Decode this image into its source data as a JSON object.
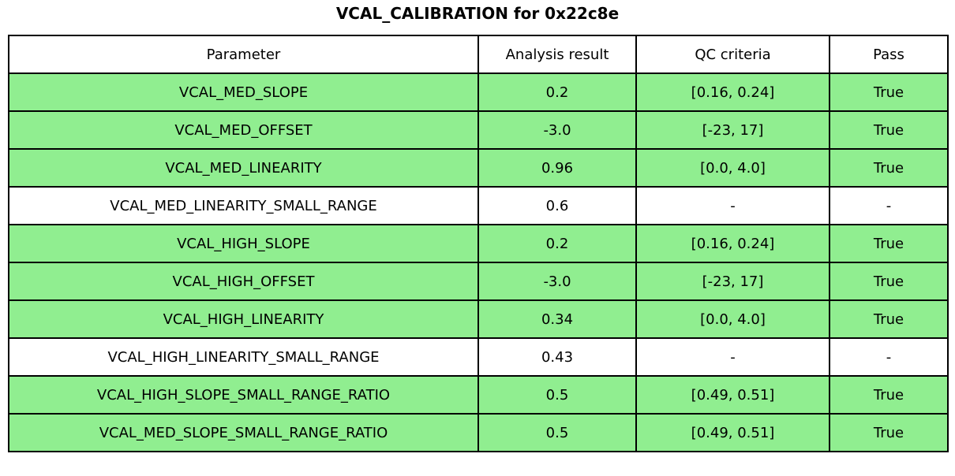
{
  "title": "VCAL_CALIBRATION for 0x22c8e",
  "colors": {
    "pass_row_background": "#90EE90",
    "default_row_background": "#FFFFFF",
    "border": "#000000"
  },
  "table": {
    "headers": {
      "parameter": "Parameter",
      "result": "Analysis result",
      "criteria": "QC criteria",
      "pass": "Pass"
    },
    "rows": [
      {
        "parameter": "VCAL_MED_SLOPE",
        "result": "0.2",
        "criteria": "[0.16, 0.24]",
        "pass": "True",
        "highlighted": true
      },
      {
        "parameter": "VCAL_MED_OFFSET",
        "result": "-3.0",
        "criteria": "[-23, 17]",
        "pass": "True",
        "highlighted": true
      },
      {
        "parameter": "VCAL_MED_LINEARITY",
        "result": "0.96",
        "criteria": "[0.0, 4.0]",
        "pass": "True",
        "highlighted": true
      },
      {
        "parameter": "VCAL_MED_LINEARITY_SMALL_RANGE",
        "result": "0.6",
        "criteria": "-",
        "pass": "-",
        "highlighted": false
      },
      {
        "parameter": "VCAL_HIGH_SLOPE",
        "result": "0.2",
        "criteria": "[0.16, 0.24]",
        "pass": "True",
        "highlighted": true
      },
      {
        "parameter": "VCAL_HIGH_OFFSET",
        "result": "-3.0",
        "criteria": "[-23, 17]",
        "pass": "True",
        "highlighted": true
      },
      {
        "parameter": "VCAL_HIGH_LINEARITY",
        "result": "0.34",
        "criteria": "[0.0, 4.0]",
        "pass": "True",
        "highlighted": true
      },
      {
        "parameter": "VCAL_HIGH_LINEARITY_SMALL_RANGE",
        "result": "0.43",
        "criteria": "-",
        "pass": "-",
        "highlighted": false
      },
      {
        "parameter": "VCAL_HIGH_SLOPE_SMALL_RANGE_RATIO",
        "result": "0.5",
        "criteria": "[0.49, 0.51]",
        "pass": "True",
        "highlighted": true
      },
      {
        "parameter": "VCAL_MED_SLOPE_SMALL_RANGE_RATIO",
        "result": "0.5",
        "criteria": "[0.49, 0.51]",
        "pass": "True",
        "highlighted": true
      }
    ]
  }
}
